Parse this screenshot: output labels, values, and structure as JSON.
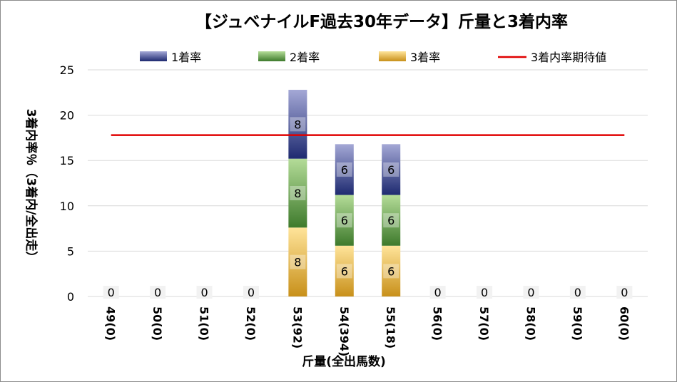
{
  "chart_data": {
    "type": "bar",
    "stacked": true,
    "title": "【ジュベナイルF過去30年データ】斤量と3着内率",
    "xlabel": "斤量(全出馬数)",
    "ylabel": "3着内率％（3着内/全出走）",
    "ylim": [
      0,
      25
    ],
    "yticks": [
      0,
      5,
      10,
      15,
      20,
      25
    ],
    "grid": true,
    "legend_position": "top",
    "categories": [
      "49(0)",
      "50(0)",
      "51(0)",
      "52(0)",
      "53(92)",
      "54(394)",
      "55(18)",
      "56(0)",
      "57(0)",
      "58(0)",
      "59(0)",
      "60(0)"
    ],
    "series": [
      {
        "name": "3着率",
        "color": "#d9a520",
        "values": [
          0,
          0,
          0,
          0,
          7.6,
          5.6,
          5.6,
          0,
          0,
          0,
          0,
          0
        ],
        "labels": [
          "",
          "",
          "",
          "",
          "8",
          "6",
          "6",
          "",
          "",
          "",
          "",
          ""
        ]
      },
      {
        "name": "2着率",
        "color": "#5b9a3c",
        "values": [
          0,
          0,
          0,
          0,
          7.6,
          5.6,
          5.6,
          0,
          0,
          0,
          0,
          0
        ],
        "labels": [
          "",
          "",
          "",
          "",
          "8",
          "6",
          "6",
          "",
          "",
          "",
          "",
          ""
        ]
      },
      {
        "name": "1着率",
        "color": "#2e3a8c",
        "values": [
          0,
          0,
          0,
          0,
          7.6,
          5.6,
          5.6,
          0,
          0,
          0,
          0,
          0
        ],
        "labels": [
          "",
          "",
          "",
          "",
          "8",
          "6",
          "6",
          "",
          "",
          "",
          "",
          ""
        ]
      }
    ],
    "legend_order": [
      "1着率",
      "2着率",
      "3着率",
      "3着内率期待値"
    ],
    "zero_labels": [
      "0",
      "0",
      "0",
      "0",
      "",
      "",
      "",
      "0",
      "0",
      "0",
      "0",
      "0"
    ],
    "reference_line": {
      "name": "3着内率期待値",
      "value": 17.8,
      "color": "#e00000"
    }
  }
}
